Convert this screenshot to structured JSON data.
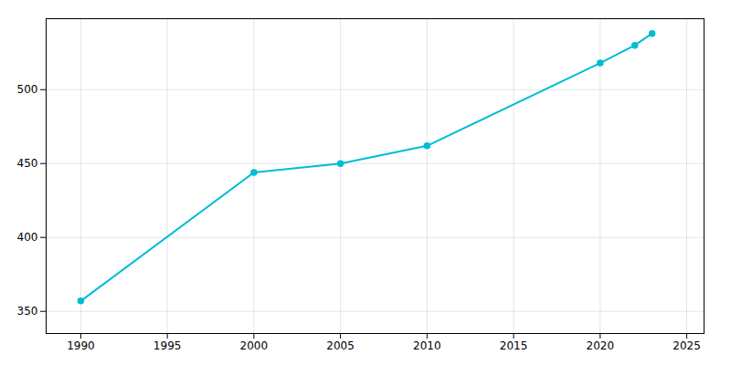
{
  "chart_data": {
    "type": "line",
    "x": [
      1990,
      2000,
      2005,
      2010,
      2020,
      2022,
      2023
    ],
    "values": [
      357,
      444,
      450,
      462,
      518,
      530,
      538
    ],
    "color": "#00BCD4",
    "marker": "circle",
    "xlim": [
      1988,
      2026
    ],
    "ylim": [
      335,
      548
    ],
    "xticks": [
      1990,
      1995,
      2000,
      2005,
      2010,
      2015,
      2020,
      2025
    ],
    "yticks": [
      350,
      400,
      450,
      500
    ],
    "grid": true
  }
}
